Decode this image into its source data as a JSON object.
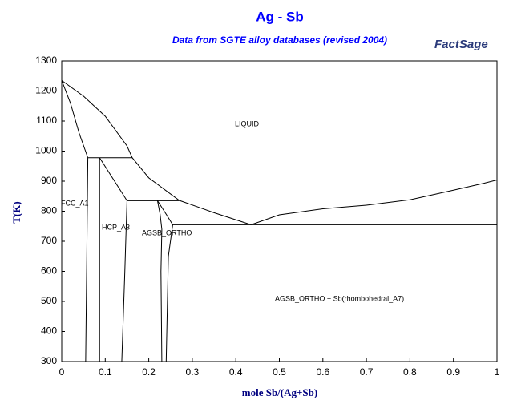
{
  "chart_data": {
    "type": "line",
    "title": "Ag - Sb",
    "subtitle": "Data from SGTE alloy databases (revised 2004)",
    "logo": "FactSage",
    "x_label": "mole Sb/(Ag+Sb)",
    "y_label": "T(K)",
    "xlim": [
      0,
      1
    ],
    "ylim": [
      300,
      1300
    ],
    "xticks": [
      0,
      0.1,
      0.2,
      0.3,
      0.4,
      0.5,
      0.6,
      0.7,
      0.8,
      0.9,
      1
    ],
    "yticks": [
      300,
      400,
      500,
      600,
      700,
      800,
      900,
      1000,
      1100,
      1200,
      1300
    ],
    "grid": false,
    "annotations": [
      "LIQUID",
      "FCC_A1",
      "HCP_A3",
      "AGSB_ORTHO",
      "AGSB_ORTHO + Sb(rhombohedral_A7)"
    ],
    "series": [
      {
        "color": "#000000",
        "x": [
          0,
          0.05,
          0.1,
          0.15,
          0.162,
          0.2,
          0.27,
          0.35,
          0.435
        ],
        "values": [
          1235,
          1183,
          1116,
          1017,
          978,
          911,
          836,
          795,
          755
        ]
      },
      {
        "color": "#000000",
        "x": [
          0,
          0.02,
          0.04,
          0.06
        ],
        "values": [
          1235,
          1160,
          1060,
          978
        ]
      },
      {
        "color": "#000000",
        "x": [
          0.06,
          0.058,
          0.055
        ],
        "values": [
          978,
          700,
          300
        ]
      },
      {
        "color": "#000000",
        "x": [
          0.06,
          0.162
        ],
        "values": [
          978,
          978
        ]
      },
      {
        "color": "#000000",
        "x": [
          0.087,
          0.087
        ],
        "values": [
          978,
          300
        ]
      },
      {
        "color": "#000000",
        "x": [
          0.087,
          0.15
        ],
        "values": [
          978,
          835
        ]
      },
      {
        "color": "#000000",
        "x": [
          0.15,
          0.27
        ],
        "values": [
          835,
          835
        ]
      },
      {
        "color": "#000000",
        "x": [
          0.15,
          0.145,
          0.138
        ],
        "values": [
          835,
          600,
          300
        ]
      },
      {
        "color": "#000000",
        "x": [
          0.22,
          0.226,
          0.23,
          0.228,
          0.23
        ],
        "values": [
          835,
          790,
          740,
          600,
          300
        ]
      },
      {
        "color": "#000000",
        "x": [
          0.22,
          0.24,
          0.255,
          0.245,
          0.24
        ],
        "values": [
          835,
          790,
          755,
          650,
          300
        ]
      },
      {
        "color": "#000000",
        "x": [
          0.255,
          1
        ],
        "values": [
          755,
          755
        ]
      },
      {
        "color": "#000000",
        "x": [
          0.435,
          0.5,
          0.6,
          0.7,
          0.8,
          0.9,
          0.97,
          1
        ],
        "values": [
          755,
          788,
          808,
          820,
          838,
          870,
          893,
          904
        ]
      }
    ]
  }
}
